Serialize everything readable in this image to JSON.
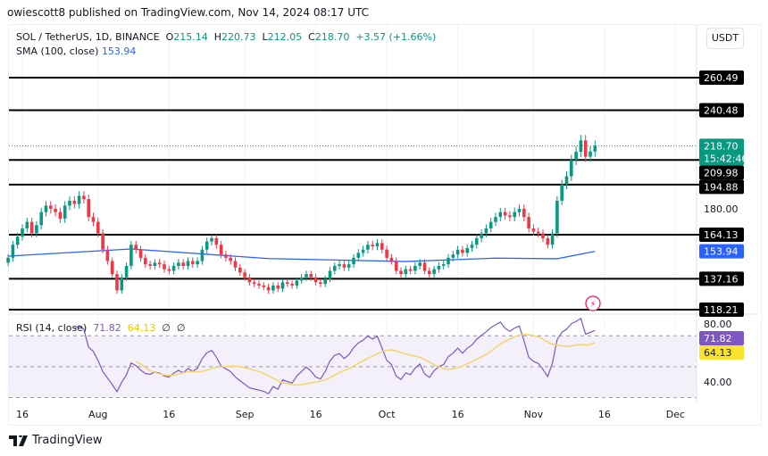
{
  "header": {
    "published": "owiescott8 published on TradingView.com, Nov 14, 2024 08:17 UTC"
  },
  "legend": {
    "symbol": "SOL / TetherUS, 1D, BINANCE",
    "o_label": "O",
    "o": "215.14",
    "h_label": "H",
    "h": "220.73",
    "l_label": "L",
    "l": "212.05",
    "c_label": "C",
    "c": "218.70",
    "change": "+3.57 (+1.66%)",
    "sma_label": "SMA (100, close)",
    "sma_value": "153.94"
  },
  "currency_button": "USDT",
  "rsi_legend": {
    "label": "RSI (14, close)",
    "rsi": "71.82",
    "ma": "64.13",
    "e1": "∅",
    "e2": "∅"
  },
  "price_tags": {
    "last": "218.70",
    "countdown": "15:42:46",
    "sma": "153.94",
    "rsi": "71.82",
    "rsi_ma": "64.13"
  },
  "branding": "TradingView",
  "colors": {
    "up": "#089981",
    "down": "#f23645",
    "sma": "#2962ff",
    "rsi": "#7e57c2",
    "rsi_ma": "#f5d46b",
    "levels": "#000000"
  },
  "chart_data": {
    "type": "candlestick",
    "symbol": "SOL/USDT",
    "levels": [
      260.49,
      240.48,
      209.98,
      194.88,
      164.13,
      137.16,
      118.21
    ],
    "price_ticks": [
      "180.00"
    ],
    "rsi_ticks": [
      "80.00",
      "40.00"
    ],
    "rsi_bands": [
      70,
      50,
      30
    ],
    "x_ticks": [
      {
        "d": "2024-07-16",
        "t": "16"
      },
      {
        "d": "2024-08-01",
        "t": "Aug"
      },
      {
        "d": "2024-08-16",
        "t": "16"
      },
      {
        "d": "2024-09-01",
        "t": "Sep"
      },
      {
        "d": "2024-09-16",
        "t": "16"
      },
      {
        "d": "2024-10-01",
        "t": "Oct"
      },
      {
        "d": "2024-10-16",
        "t": "16"
      },
      {
        "d": "2024-11-01",
        "t": "Nov"
      },
      {
        "d": "2024-11-16",
        "t": "16"
      },
      {
        "d": "2024-12-01",
        "t": "Dec"
      }
    ],
    "start": "2024-07-13",
    "closes": [
      150,
      158,
      163,
      168,
      172,
      165,
      170,
      178,
      182,
      180,
      178,
      174,
      182,
      185,
      183,
      188,
      186,
      175,
      172,
      165,
      155,
      148,
      140,
      130,
      138,
      145,
      158,
      155,
      150,
      146,
      145,
      147,
      146,
      143,
      142,
      145,
      147,
      145,
      148,
      146,
      148,
      155,
      160,
      162,
      158,
      152,
      150,
      148,
      144,
      141,
      138,
      135,
      134,
      133,
      132,
      130,
      133,
      131,
      135,
      134,
      133,
      136,
      138,
      140,
      138,
      135,
      134,
      137,
      142,
      145,
      146,
      144,
      146,
      150,
      153,
      155,
      158,
      157,
      159,
      155,
      150,
      148,
      142,
      140,
      143,
      142,
      145,
      147,
      142,
      140,
      143,
      145,
      146,
      150,
      152,
      155,
      153,
      156,
      158,
      162,
      165,
      168,
      172,
      175,
      178,
      176,
      175,
      178,
      180,
      175,
      168,
      166,
      165,
      162,
      158,
      165,
      185,
      195,
      200,
      210,
      215,
      222,
      212,
      215.14,
      218.7
    ],
    "sma100": [
      {
        "d": "2024-07-13",
        "v": 151
      },
      {
        "d": "2024-08-08",
        "v": 155.4
      },
      {
        "d": "2024-09-06",
        "v": 149.5
      },
      {
        "d": "2024-10-05",
        "v": 147.7
      },
      {
        "d": "2024-10-24",
        "v": 149.8
      },
      {
        "d": "2024-11-06",
        "v": 149.4
      },
      {
        "d": "2024-11-14",
        "v": 153.94
      }
    ]
  }
}
